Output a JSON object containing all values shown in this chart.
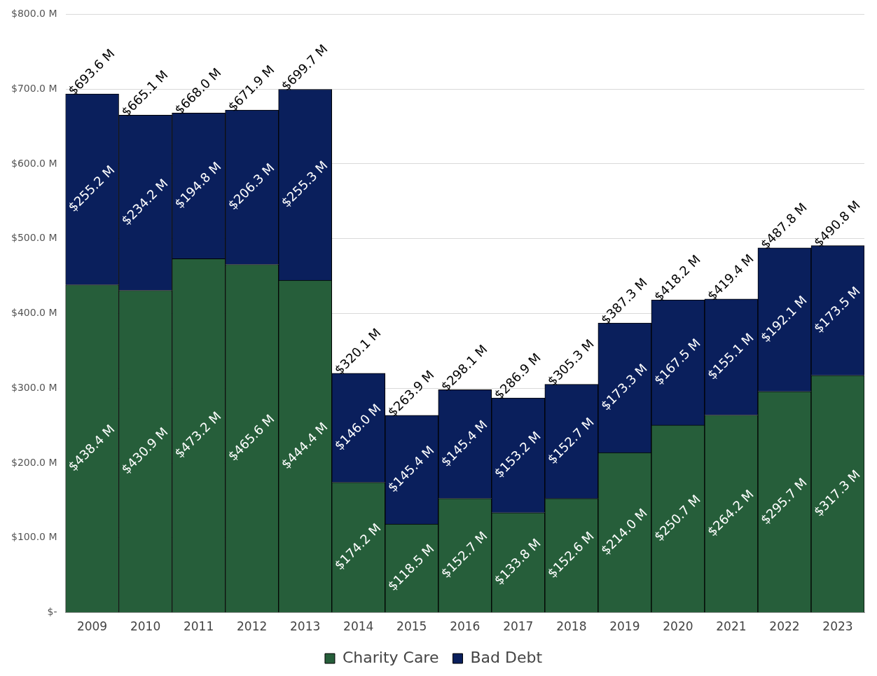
{
  "chart_data": {
    "type": "bar",
    "stacked": true,
    "grid": "y",
    "legend": "bottom",
    "categories": [
      "2009",
      "2010",
      "2011",
      "2012",
      "2013",
      "2014",
      "2015",
      "2016",
      "2017",
      "2018",
      "2019",
      "2020",
      "2021",
      "2022",
      "2023"
    ],
    "series": [
      {
        "name": "Charity Care",
        "color": "#265e3a",
        "values": [
          438.4,
          430.9,
          473.2,
          465.6,
          444.4,
          174.2,
          118.5,
          152.7,
          133.8,
          152.6,
          214.0,
          250.7,
          264.2,
          295.7,
          317.3
        ],
        "value_labels": [
          "$438.4 M",
          "$430.9 M",
          "$473.2 M",
          "$465.6 M",
          "$444.4 M",
          "$174.2 M",
          "$118.5 M",
          "$152.7 M",
          "$133.8 M",
          "$152.6 M",
          "$214.0 M",
          "$250.7 M",
          "$264.2 M",
          "$295.7 M",
          "$317.3 M"
        ]
      },
      {
        "name": "Bad Debt",
        "color": "#0a1f5c",
        "values": [
          255.2,
          234.2,
          194.8,
          206.3,
          255.3,
          146.0,
          145.4,
          145.4,
          153.2,
          152.7,
          173.3,
          167.5,
          155.1,
          192.1,
          173.5
        ],
        "value_labels": [
          "$255.2 M",
          "$234.2 M",
          "$194.8 M",
          "$206.3 M",
          "$255.3 M",
          "$146.0 M",
          "$145.4 M",
          "$145.4 M",
          "$153.2 M",
          "$152.7 M",
          "$173.3 M",
          "$167.5 M",
          "$155.1 M",
          "$192.1 M",
          "$173.5 M"
        ]
      }
    ],
    "totals": [
      "$693.6 M",
      "$665.1 M",
      "$668.0 M",
      "$671.9 M",
      "$699.7 M",
      "$320.1 M",
      "$263.9 M",
      "$298.1 M",
      "$286.9 M",
      "$305.3 M",
      "$387.3 M",
      "$418.2 M",
      "$419.4 M",
      "$487.8 M",
      "$490.8 M"
    ],
    "ylim": [
      0,
      800
    ],
    "yticks": [
      {
        "value": 0,
        "label": "$-"
      },
      {
        "value": 100,
        "label": "$100.0 M"
      },
      {
        "value": 200,
        "label": "$200.0 M"
      },
      {
        "value": 300,
        "label": "$300.0 M"
      },
      {
        "value": 400,
        "label": "$400.0 M"
      },
      {
        "value": 500,
        "label": "$500.0 M"
      },
      {
        "value": 600,
        "label": "$600.0 M"
      },
      {
        "value": 700,
        "label": "$700.0 M"
      },
      {
        "value": 800,
        "label": "$800.0 M"
      }
    ]
  }
}
